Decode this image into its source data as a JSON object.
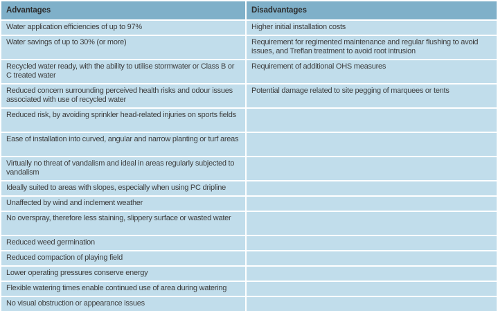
{
  "colors": {
    "header_bg": "#7fb0c9",
    "row_bg": "#c1ddeb",
    "gap": "#ffffff",
    "header_text": "#2d2d2d",
    "body_text": "#3d3d3d"
  },
  "table": {
    "headers": [
      "Advantages",
      "Disadvantages"
    ],
    "rows": [
      {
        "advantage": "Water application efficiencies of up to 97%",
        "disadvantage": "Higher initial installation costs",
        "lines": 1
      },
      {
        "advantage": "Water savings of up to 30% (or more)",
        "disadvantage": "Requirement for regimented maintenance and regular flushing to avoid issues, and Treflan treatment to avoid root intrusion",
        "lines": 2
      },
      {
        "advantage": "Recycled water ready, with the ability to utilise stormwater or Class B or C treated water",
        "disadvantage": "Requirement of additional OHS measures",
        "lines": 2
      },
      {
        "advantage": "Reduced concern surrounding perceived health risks and odour issues associated with use of recycled water",
        "disadvantage": "Potential damage related to site pegging of marquees or tents",
        "lines": 2
      },
      {
        "advantage": "Reduced risk, by avoiding sprinkler head-related injuries on sports fields",
        "disadvantage": "",
        "lines": 2
      },
      {
        "advantage": "Ease of installation into curved, angular and narrow planting or turf areas",
        "disadvantage": "",
        "lines": 2
      },
      {
        "advantage": "Virtually no threat of vandalism and ideal in areas regularly subjected to vandalism",
        "disadvantage": "",
        "lines": 2
      },
      {
        "advantage": "Ideally suited to areas with slopes, especially when using PC dripline",
        "disadvantage": "",
        "lines": 1
      },
      {
        "advantage": "Unaffected by wind and inclement weather",
        "disadvantage": "",
        "lines": 1
      },
      {
        "advantage": "No overspray, therefore less staining, slippery surface or wasted water",
        "disadvantage": "",
        "lines": 2
      },
      {
        "advantage": "Reduced weed germination",
        "disadvantage": "",
        "lines": 1
      },
      {
        "advantage": "Reduced compaction of playing field",
        "disadvantage": "",
        "lines": 1
      },
      {
        "advantage": "Lower operating pressures conserve energy",
        "disadvantage": "",
        "lines": 1
      },
      {
        "advantage": "Flexible watering times enable continued use of area during watering",
        "disadvantage": "",
        "lines": 1
      },
      {
        "advantage": "No visual obstruction or appearance issues",
        "disadvantage": "",
        "lines": 1
      }
    ]
  }
}
